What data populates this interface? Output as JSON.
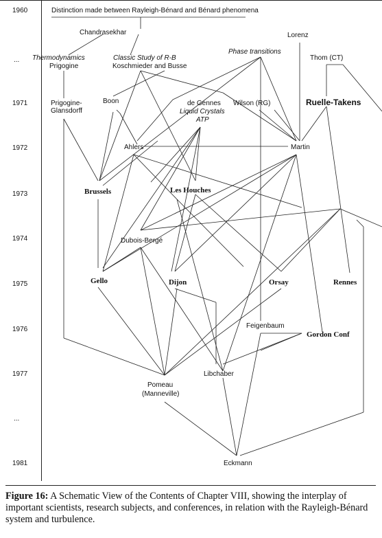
{
  "years": [
    "1960",
    "...",
    "1971",
    "1972",
    "1973",
    "1974",
    "1975",
    "1976",
    "1977",
    "...",
    "1981"
  ],
  "nodes": {
    "distinction": "Distinction made between Rayleigh-Bénard and Bénard phenomena",
    "chandrasekhar": "Chandrasekhar",
    "thermodynamics": "Thermodynamics",
    "prigogine": "Prigogine",
    "classic_study": "Classic Study of R-B",
    "koschmieder": "Koschmieder and Busse",
    "phase_transitions": "Phase transitions",
    "lorenz": "Lorenz",
    "thom": "Thom (CT)",
    "prigogine_glansdorff_1": "Prigogine-",
    "prigogine_glansdorff_2": "Glansdorff",
    "boon": "Boon",
    "de_gennes": "de Gennes",
    "liquid_crystals": "Liquid Crystals",
    "atp": "ATP",
    "wilson": "Wilson (RG)",
    "ruelle_takens": "Ruelle-Takens",
    "ahlers": "Ahlers",
    "martin": "Martin",
    "brussels": "Brussels",
    "les_houches": "Les Houches",
    "dubois_berge": "Dubois-Bergé",
    "gello": "Gello",
    "dijon": "Dijon",
    "orsay": "Orsay",
    "rennes": "Rennes",
    "feigenbaum": "Feigenbaum",
    "gordon_conf": "Gordon Conf",
    "libchaber": "Libchaber",
    "pomeau": "Pomeau",
    "manneville": "(Manneville)",
    "eckmann": "Eckmann"
  },
  "caption": {
    "label": "Figure 16:",
    "text": " A Schematic View of the Contents of Chapter VIII, showing the interplay of important scientists, research subjects, and conferences, in relation with the Rayleigh-Bénard system and turbulence."
  }
}
